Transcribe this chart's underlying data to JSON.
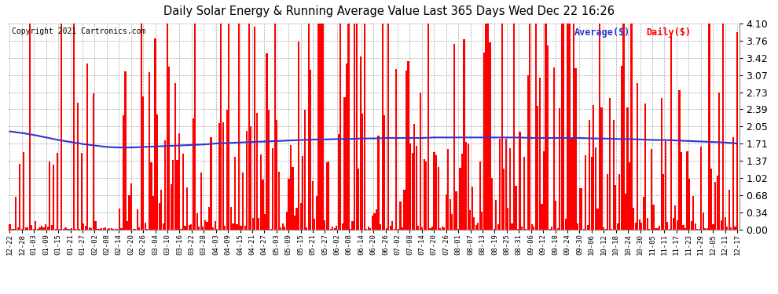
{
  "title": "Daily Solar Energy & Running Average Value Last 365 Days Wed Dec 22 16:26",
  "copyright": "Copyright 2021 Cartronics.com",
  "legend_avg": "Average($)",
  "legend_daily": "Daily($)",
  "bar_color": "#ff0000",
  "avg_line_color": "#3333cc",
  "background_color": "#ffffff",
  "grid_color": "#aaaaaa",
  "ylim": [
    0.0,
    4.1
  ],
  "yticks": [
    0.0,
    0.34,
    0.68,
    1.02,
    1.37,
    1.71,
    2.05,
    2.39,
    2.73,
    3.07,
    3.42,
    3.76,
    4.1
  ],
  "n_days": 366,
  "seed": 12345,
  "xtick_labels": [
    "12-22",
    "12-28",
    "01-03",
    "01-09",
    "01-15",
    "01-21",
    "01-27",
    "02-02",
    "02-08",
    "02-14",
    "02-20",
    "02-26",
    "03-04",
    "03-10",
    "03-16",
    "03-22",
    "03-28",
    "04-03",
    "04-09",
    "04-15",
    "04-21",
    "04-27",
    "05-03",
    "05-09",
    "05-15",
    "05-21",
    "05-27",
    "06-02",
    "06-08",
    "06-14",
    "06-20",
    "06-26",
    "07-02",
    "07-08",
    "07-14",
    "07-20",
    "07-26",
    "08-01",
    "08-07",
    "08-13",
    "08-19",
    "08-25",
    "08-31",
    "09-06",
    "09-12",
    "09-18",
    "09-24",
    "09-30",
    "10-06",
    "10-12",
    "10-18",
    "10-24",
    "10-30",
    "11-05",
    "11-11",
    "11-17",
    "11-23",
    "11-29",
    "12-05",
    "12-11",
    "12-17"
  ],
  "avg_points": [
    1.95,
    1.92,
    1.88,
    1.83,
    1.78,
    1.74,
    1.7,
    1.67,
    1.64,
    1.63,
    1.63,
    1.64,
    1.65,
    1.66,
    1.67,
    1.68,
    1.69,
    1.71,
    1.72,
    1.73,
    1.74,
    1.75,
    1.76,
    1.77,
    1.78,
    1.79,
    1.79,
    1.8,
    1.8,
    1.81,
    1.81,
    1.82,
    1.82,
    1.82,
    1.82,
    1.83,
    1.83,
    1.83,
    1.83,
    1.83,
    1.83,
    1.83,
    1.83,
    1.82,
    1.82,
    1.82,
    1.82,
    1.82,
    1.81,
    1.81,
    1.8,
    1.8,
    1.79,
    1.78,
    1.78,
    1.77,
    1.76,
    1.75,
    1.74,
    1.73,
    1.71
  ]
}
